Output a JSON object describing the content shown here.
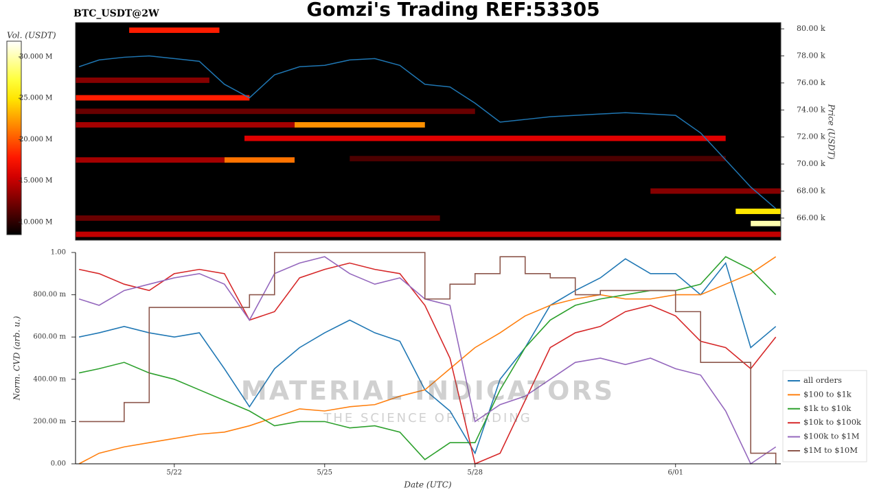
{
  "header": {
    "title": "Gomzi's Trading REF:53305"
  },
  "watermark": {
    "title": "MATERIAL INDICATORS",
    "subtitle": "THE SCIENCE OF TRADING"
  },
  "chart_data": [
    {
      "type": "heatmap",
      "title": "BTC_USDT@2W",
      "ylabel": "Price (USDT)",
      "xlim": [
        20.03,
        34.1
      ],
      "ylim": [
        64370,
        80460
      ],
      "yticks": [
        {
          "value": 66000,
          "label": "66.00 k"
        },
        {
          "value": 68000,
          "label": "68.00 k"
        },
        {
          "value": 70000,
          "label": "70.00 k"
        },
        {
          "value": 72000,
          "label": "72.00 k"
        },
        {
          "value": 74000,
          "label": "74.00 k"
        },
        {
          "value": 76000,
          "label": "76.00 k"
        },
        {
          "value": 78000,
          "label": "78.00 k"
        },
        {
          "value": 80000,
          "label": "80.00 k"
        }
      ],
      "colorbar": {
        "label": "Vol. (USDT)",
        "lim": [
          8500000,
          31900000
        ],
        "ticks": [
          {
            "value": 10000000,
            "label": "10.000 M"
          },
          {
            "value": 15000000,
            "label": "15.000 M"
          },
          {
            "value": 20000000,
            "label": "20.000 M"
          },
          {
            "value": 25000000,
            "label": "25.000 M"
          },
          {
            "value": 30000000,
            "label": "30.000 M"
          }
        ]
      },
      "bands": [
        {
          "price": 79900,
          "start": 21.1,
          "end": 22.9,
          "volume": 18000000
        },
        {
          "price": 76200,
          "start": 20.03,
          "end": 22.7,
          "volume": 13000000
        },
        {
          "price": 74900,
          "start": 20.03,
          "end": 23.5,
          "volume": 18000000
        },
        {
          "price": 73900,
          "start": 20.03,
          "end": 28.0,
          "volume": 12000000
        },
        {
          "price": 72900,
          "start": 24.4,
          "end": 27.0,
          "volume": 22000000
        },
        {
          "price": 72900,
          "start": 20.03,
          "end": 24.4,
          "volume": 14000000
        },
        {
          "price": 71900,
          "start": 23.4,
          "end": 33.0,
          "volume": 16000000
        },
        {
          "price": 70300,
          "start": 23.0,
          "end": 24.4,
          "volume": 21000000
        },
        {
          "price": 70300,
          "start": 20.03,
          "end": 23.0,
          "volume": 14000000
        },
        {
          "price": 70400,
          "start": 25.5,
          "end": 33.0,
          "volume": 11000000
        },
        {
          "price": 68000,
          "start": 31.5,
          "end": 34.1,
          "volume": 13000000
        },
        {
          "price": 66000,
          "start": 20.03,
          "end": 27.3,
          "volume": 12000000
        },
        {
          "price": 66500,
          "start": 33.2,
          "end": 34.1,
          "volume": 25000000
        },
        {
          "price": 65600,
          "start": 33.5,
          "end": 34.1,
          "volume": 30000000
        },
        {
          "price": 64800,
          "start": 20.03,
          "end": 34.1,
          "volume": 15000000
        }
      ],
      "line": {
        "color": "#1f77b4",
        "values": [
          77200,
          77700,
          77900,
          78000,
          77800,
          77600,
          75900,
          74900,
          76600,
          77200,
          77300,
          77700,
          77800,
          77300,
          75900,
          75700,
          74500,
          73100,
          73300,
          73500,
          73600,
          73700,
          73800,
          73700,
          73600,
          72300,
          70300,
          68300,
          66700
        ]
      },
      "x": [
        20.1,
        20.5,
        21,
        21.5,
        22,
        22.5,
        23,
        23.5,
        24,
        24.5,
        25,
        25.5,
        26,
        26.5,
        27,
        27.5,
        28,
        28.5,
        29,
        29.5,
        30,
        30.5,
        31,
        31.5,
        32,
        32.5,
        33,
        33.5,
        34
      ]
    },
    {
      "type": "line",
      "xlabel": "Date (UTC)",
      "ylabel": "Norm. CVD (arb. u.)",
      "xlim": [
        20.03,
        34.1
      ],
      "ylim": [
        0,
        1
      ],
      "xticks": [
        {
          "value": 22,
          "label": "5/22"
        },
        {
          "value": 25,
          "label": "5/25"
        },
        {
          "value": 28,
          "label": "5/28"
        },
        {
          "value": 32,
          "label": "6/01"
        }
      ],
      "yticks": [
        {
          "value": 0,
          "label": "0.00"
        },
        {
          "value": 0.2,
          "label": "200.00 m"
        },
        {
          "value": 0.4,
          "label": "400.00 m"
        },
        {
          "value": 0.6,
          "label": "600.00 m"
        },
        {
          "value": 0.8,
          "label": "800.00 m"
        },
        {
          "value": 1,
          "label": "1.00"
        }
      ],
      "x": [
        20.1,
        20.5,
        21,
        21.5,
        22,
        22.5,
        23,
        23.5,
        24,
        24.5,
        25,
        25.5,
        26,
        26.5,
        27,
        27.5,
        28,
        28.5,
        29,
        29.5,
        30,
        30.5,
        31,
        31.5,
        32,
        32.5,
        33,
        33.5,
        34
      ],
      "series": [
        {
          "name": "all orders",
          "color": "#1f77b4",
          "values": [
            0.6,
            0.62,
            0.65,
            0.62,
            0.6,
            0.62,
            0.45,
            0.27,
            0.45,
            0.55,
            0.62,
            0.68,
            0.62,
            0.58,
            0.35,
            0.25,
            0.05,
            0.4,
            0.55,
            0.75,
            0.82,
            0.88,
            0.97,
            0.9,
            0.9,
            0.8,
            0.95,
            0.55,
            0.65
          ]
        },
        {
          "name": "$100 to $1k",
          "color": "#ff7f0e",
          "values": [
            0.0,
            0.05,
            0.08,
            0.1,
            0.12,
            0.14,
            0.15,
            0.18,
            0.22,
            0.26,
            0.25,
            0.27,
            0.28,
            0.32,
            0.35,
            0.45,
            0.55,
            0.62,
            0.7,
            0.75,
            0.78,
            0.8,
            0.78,
            0.78,
            0.8,
            0.8,
            0.85,
            0.9,
            0.98
          ]
        },
        {
          "name": "$1k to $10k",
          "color": "#2ca02c",
          "values": [
            0.43,
            0.45,
            0.48,
            0.43,
            0.4,
            0.35,
            0.3,
            0.25,
            0.18,
            0.2,
            0.2,
            0.17,
            0.18,
            0.15,
            0.02,
            0.1,
            0.1,
            0.35,
            0.55,
            0.68,
            0.75,
            0.78,
            0.8,
            0.82,
            0.82,
            0.85,
            0.98,
            0.92,
            0.8
          ]
        },
        {
          "name": "$10k to $100k",
          "color": "#d62728",
          "values": [
            0.92,
            0.9,
            0.85,
            0.82,
            0.9,
            0.92,
            0.9,
            0.68,
            0.72,
            0.88,
            0.92,
            0.95,
            0.92,
            0.9,
            0.75,
            0.5,
            0.0,
            0.05,
            0.3,
            0.55,
            0.62,
            0.65,
            0.72,
            0.75,
            0.7,
            0.58,
            0.55,
            0.45,
            0.6
          ]
        },
        {
          "name": "$100k to $1M",
          "color": "#9467bd",
          "values": [
            0.78,
            0.75,
            0.82,
            0.85,
            0.88,
            0.9,
            0.85,
            0.68,
            0.9,
            0.95,
            0.98,
            0.9,
            0.85,
            0.88,
            0.78,
            0.75,
            0.2,
            0.28,
            0.32,
            0.4,
            0.48,
            0.5,
            0.47,
            0.5,
            0.45,
            0.42,
            0.25,
            0.0,
            0.08
          ]
        },
        {
          "name": "$1M to $10M",
          "color": "#8c564b",
          "step": true,
          "values": [
            0.2,
            0.2,
            0.29,
            0.74,
            0.74,
            0.74,
            0.74,
            0.8,
            1.0,
            1.0,
            1.0,
            1.0,
            1.0,
            1.0,
            0.78,
            0.85,
            0.9,
            0.98,
            0.9,
            0.88,
            0.8,
            0.82,
            0.82,
            0.82,
            0.72,
            0.48,
            0.48,
            0.05,
            0.0
          ]
        }
      ],
      "legend": "right"
    }
  ]
}
